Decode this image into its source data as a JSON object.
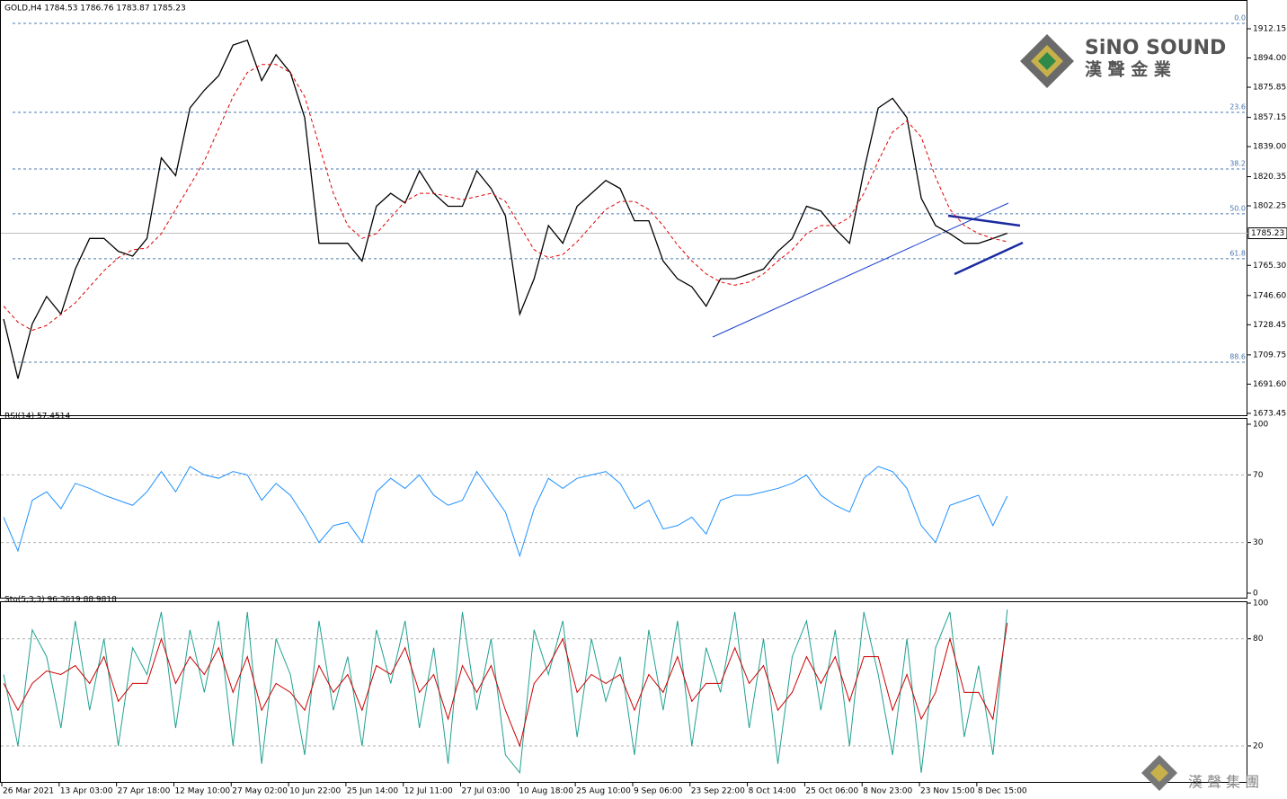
{
  "chart_data": [
    {
      "type": "line",
      "title": "GOLD,H4  1784.53 1786.76 1783.87 1785.23",
      "xlim": [
        0,
        86.5
      ],
      "ylim": [
        1672.3,
        1923.3
      ],
      "yticks": [
        1912.15,
        {
          "value": 1894,
          "label": "1894.00"
        },
        1875.85,
        1857.15,
        {
          "value": 1839,
          "label": "1839.00"
        },
        1820.35,
        1802.25,
        {
          "value": 1765.3,
          "label": "1765.30"
        },
        {
          "value": 1746.6,
          "label": "1746.60"
        },
        1728.45,
        1709.75,
        {
          "value": 1691.6,
          "label": "1691.60"
        },
        1673.45
      ],
      "last_price": 1785.23,
      "fib_levels": [
        {
          "value": 1915.5,
          "label": "0.0"
        },
        {
          "value": 1860.3,
          "label": "23.6"
        },
        {
          "value": 1825.1,
          "label": "38.2"
        },
        {
          "value": 1797.3,
          "label": "50.0"
        },
        {
          "value": 1769.4,
          "label": "61.8"
        },
        {
          "value": 1705.2,
          "label": "88.6"
        }
      ],
      "series": [
        {
          "color": "#000000",
          "values": [
            1732,
            1695,
            1729,
            1746,
            1735,
            1763,
            1782,
            1782,
            1774,
            1771,
            1782,
            1832,
            1821,
            1863,
            1874,
            1883,
            1902,
            1905,
            1880,
            1896,
            1885,
            1857,
            1779,
            1779,
            1779,
            1768,
            1802,
            1810,
            1804,
            1824,
            1810,
            1802,
            1802,
            1824,
            1813,
            1796,
            1735,
            1757,
            1790,
            1779,
            1802,
            1810,
            1818,
            1813,
            1793,
            1793,
            1768,
            1757,
            1752,
            1740,
            1757,
            1757,
            1760,
            1763,
            1774,
            1782,
            1802,
            1799,
            1788,
            1779,
            1824,
            1863,
            1869,
            1857,
            1807,
            1790,
            1785,
            1779,
            1779,
            1782,
            1785.23
          ]
        },
        {
          "color": "#e00000",
          "dashed": true,
          "values": [
            1740,
            1730,
            1725,
            1728,
            1735,
            1742,
            1752,
            1762,
            1770,
            1775,
            1776,
            1785,
            1800,
            1815,
            1830,
            1850,
            1870,
            1885,
            1890,
            1890,
            1885,
            1870,
            1840,
            1810,
            1790,
            1782,
            1785,
            1795,
            1805,
            1810,
            1810,
            1808,
            1806,
            1808,
            1810,
            1805,
            1790,
            1775,
            1770,
            1772,
            1780,
            1790,
            1800,
            1805,
            1805,
            1800,
            1790,
            1778,
            1768,
            1760,
            1755,
            1753,
            1755,
            1760,
            1768,
            1775,
            1785,
            1790,
            1790,
            1795,
            1810,
            1830,
            1848,
            1855,
            1845,
            1820,
            1800,
            1790,
            1785,
            1782,
            1780
          ]
        }
      ]
    },
    {
      "type": "line",
      "title": "RSI(14) 57.4514",
      "xlim": [
        0,
        86.5
      ],
      "ylim": [
        -3.2,
        103.2
      ],
      "yticks": [
        0,
        30,
        70,
        100
      ],
      "series": [
        {
          "color": "#1e90ff",
          "values": [
            45,
            25,
            55,
            60,
            50,
            65,
            62,
            58,
            55,
            52,
            60,
            72,
            60,
            75,
            70,
            68,
            72,
            70,
            55,
            65,
            58,
            45,
            30,
            40,
            42,
            30,
            60,
            68,
            62,
            70,
            58,
            52,
            55,
            72,
            60,
            48,
            22,
            50,
            68,
            62,
            68,
            70,
            72,
            65,
            50,
            55,
            38,
            40,
            45,
            35,
            55,
            58,
            58,
            60,
            62,
            65,
            70,
            58,
            52,
            48,
            68,
            75,
            72,
            62,
            40,
            30,
            52,
            55,
            58,
            40,
            57.4514
          ]
        }
      ]
    },
    {
      "type": "line",
      "title": "Sto(5,3,3) 96.3619 88.9818",
      "xlim": [
        0,
        86.5
      ],
      "ylim": [
        -0.15,
        100.5
      ],
      "yticks": [
        20,
        80,
        100
      ],
      "xticks": [
        {
          "value": 0,
          "label": "26 Mar 2021"
        },
        {
          "value": 4,
          "label": "13 Apr 03:00"
        },
        {
          "value": 8,
          "label": "27 Apr 18:00"
        },
        {
          "value": 12,
          "label": "12 May 10:00"
        },
        {
          "value": 16,
          "label": "27 May 02:00"
        },
        {
          "value": 20,
          "label": "10 Jun 22:00"
        },
        {
          "value": 24,
          "label": "25 Jun 14:00"
        },
        {
          "value": 28,
          "label": "12 Jul 11:00"
        },
        {
          "value": 32,
          "label": "27 Jul 03:00"
        },
        {
          "value": 36,
          "label": "10 Aug 18:00"
        },
        {
          "value": 40,
          "label": "25 Aug 10:00"
        },
        {
          "value": 44,
          "label": "9 Sep 06:00"
        },
        {
          "value": 48,
          "label": "23 Sep 22:00"
        },
        {
          "value": 52,
          "label": "8 Oct 14:00"
        },
        {
          "value": 56,
          "label": "25 Oct 06:00"
        },
        {
          "value": 60,
          "label": "8 Nov 23:00"
        },
        {
          "value": 64,
          "label": "23 Nov 15:00"
        },
        {
          "value": 68,
          "label": "8 Dec 15:00"
        }
      ],
      "series": [
        {
          "color": "#20a090",
          "values": [
            60,
            20,
            85,
            70,
            30,
            90,
            40,
            80,
            20,
            75,
            60,
            95,
            30,
            85,
            50,
            90,
            20,
            95,
            10,
            80,
            60,
            15,
            90,
            40,
            70,
            20,
            85,
            55,
            90,
            30,
            75,
            10,
            95,
            40,
            80,
            15,
            5,
            85,
            60,
            90,
            25,
            80,
            45,
            70,
            15,
            85,
            40,
            90,
            20,
            75,
            50,
            95,
            30,
            80,
            10,
            70,
            90,
            40,
            85,
            20,
            95,
            60,
            15,
            80,
            5,
            75,
            95,
            25,
            65,
            15,
            96.3619
          ]
        },
        {
          "color": "#cc0000",
          "values": [
            55,
            40,
            55,
            62,
            60,
            65,
            55,
            70,
            45,
            55,
            55,
            80,
            55,
            70,
            60,
            75,
            50,
            70,
            40,
            55,
            50,
            40,
            65,
            50,
            60,
            40,
            65,
            60,
            75,
            50,
            60,
            35,
            65,
            50,
            65,
            40,
            20,
            55,
            65,
            80,
            50,
            60,
            55,
            60,
            40,
            60,
            50,
            70,
            45,
            55,
            55,
            75,
            55,
            65,
            40,
            50,
            70,
            55,
            70,
            45,
            70,
            70,
            40,
            60,
            35,
            50,
            80,
            50,
            50,
            35,
            88.9818
          ]
        }
      ]
    }
  ],
  "logo": {
    "name": "SiNO SOUND",
    "subtitle": "漢 聲 金 業",
    "footer": "漢 聲 集 團"
  }
}
